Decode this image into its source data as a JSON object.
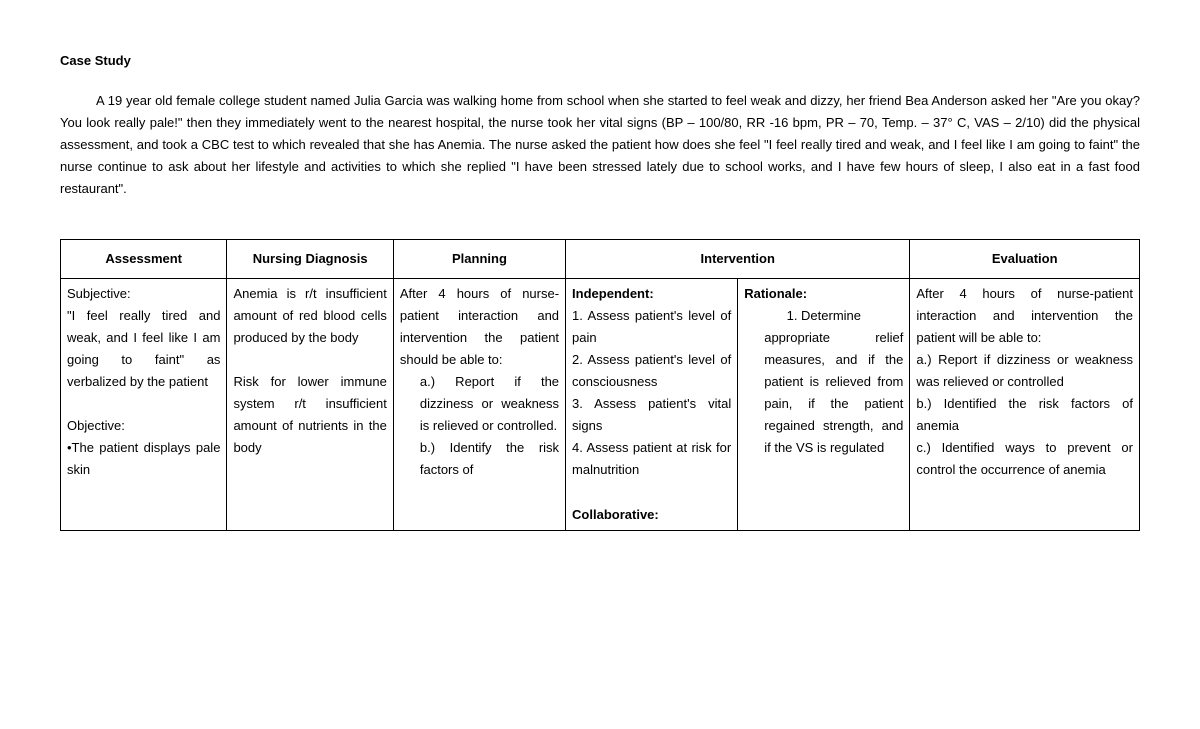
{
  "title": "Case Study",
  "narrative": "A 19 year old female college student named Julia Garcia was walking home from school when she started to feel weak and dizzy, her friend Bea Anderson asked her \"Are you okay? You look really pale!\" then they immediately went to the nearest hospital, the nurse took her vital signs (BP – 100/80, RR -16 bpm, PR – 70, Temp. – 37° C, VAS – 2/10) did the physical assessment, and took a CBC test to which revealed that she has Anemia. The nurse asked the patient how does she feel \"I feel really tired and weak, and I feel like I am going to faint\" the nurse continue to ask about her lifestyle and activities to which she replied \"I have been stressed lately due to school works, and I have few hours of sleep, I also eat in a fast food restaurant\".",
  "table": {
    "headers": {
      "assessment": "Assessment",
      "diagnosis": "Nursing Diagnosis",
      "planning": "Planning",
      "intervention": "Intervention",
      "evaluation": "Evaluation"
    },
    "assessment": {
      "subj_label": "Subjective:",
      "subj_text": "\"I feel really tired and weak, and I feel like I am going to faint\" as verbalized by the patient",
      "obj_label": "Objective:",
      "obj_text": "•The patient displays pale skin"
    },
    "diagnosis": {
      "dx1": "Anemia is r/t insufficient amount of red blood cells produced by the body",
      "dx2": "Risk for lower immune system r/t insufficient amount of nutrients in the body"
    },
    "planning": {
      "intro": "After 4 hours of nurse-patient interaction and intervention the patient should be able to:",
      "a": "a.) Report if the dizziness or weakness is relieved or controlled.",
      "b": "b.) Identify the risk factors of"
    },
    "intervention": {
      "indep_label": "Independent:",
      "i1": "1. Assess patient's level of pain",
      "i2": "2. Assess patient's level of consciousness",
      "i3": "3. Assess patient's vital signs",
      "i4": "4. Assess patient at risk for malnutrition",
      "collab_label": "Collaborative:",
      "rat_label": "Rationale:",
      "r1_head": "1. Determine",
      "r1_body": "appropriate relief measures, and if the patient is relieved from pain, if the patient regained strength, and if the VS is regulated"
    },
    "evaluation": {
      "intro": "After 4 hours of nurse-patient interaction and intervention the patient will be able to:",
      "a": "a.) Report if dizziness or weakness was relieved or controlled",
      "b": "b.) Identified the risk factors of anemia",
      "c": "c.) Identified ways to prevent or control the occurrence of anemia"
    }
  }
}
